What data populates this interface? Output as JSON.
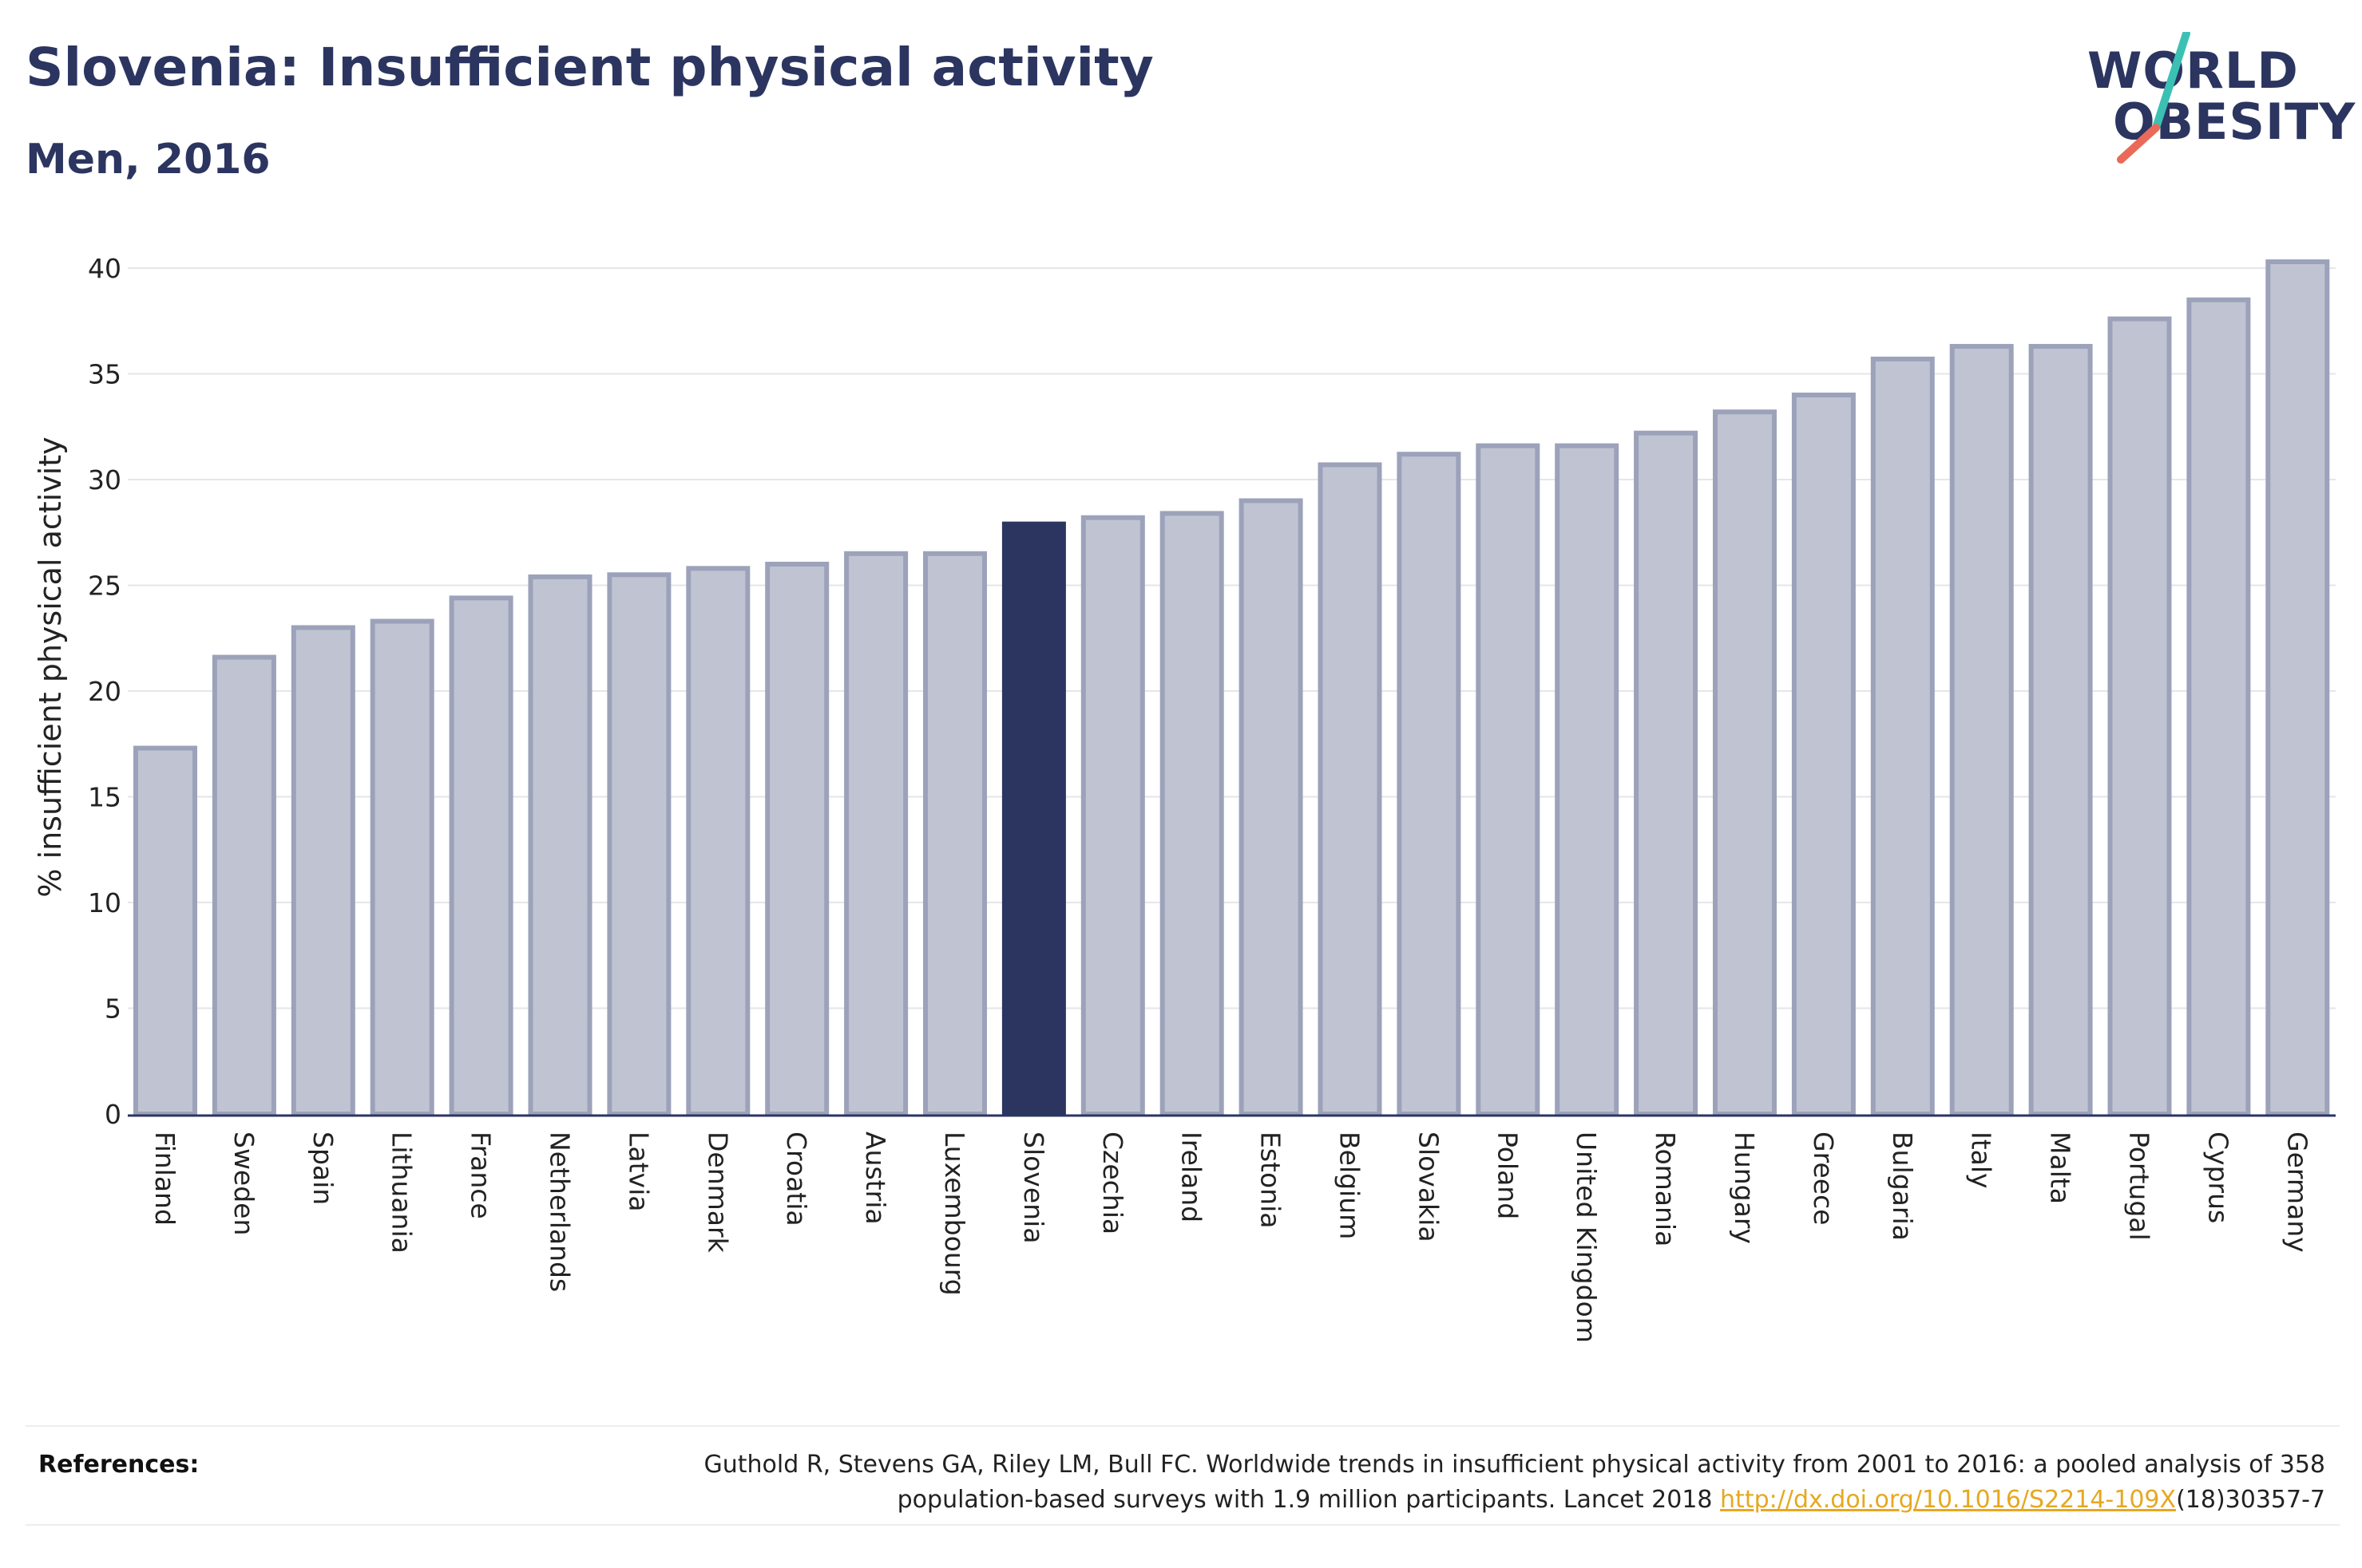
{
  "header": {
    "title": "Slovenia: Insufficient physical activity",
    "subtitle": "Men, 2016"
  },
  "logo": {
    "line1": "WORLD",
    "line2": "OBESITY",
    "slash_color_top": "#3cc0b4",
    "slash_color_bottom": "#ea6a5a"
  },
  "chart_data": {
    "type": "bar",
    "title": "Slovenia: Insufficient physical activity",
    "subtitle": "Men, 2016",
    "ylabel": "% insufficient physical activity",
    "xlabel": "",
    "ylim": [
      0,
      41
    ],
    "yticks": [
      "0",
      "5",
      "10",
      "15",
      "20",
      "25",
      "30",
      "35",
      "40"
    ],
    "grid": "horizontal",
    "highlight": "Slovenia",
    "colors": {
      "bar": "#c0c4d2",
      "bar_edge": "#9ca2ba",
      "highlight": "#2b3560"
    },
    "categories": [
      "Finland",
      "Sweden",
      "Spain",
      "Lithuania",
      "France",
      "Netherlands",
      "Latvia",
      "Denmark",
      "Croatia",
      "Austria",
      "Luxembourg",
      "Slovenia",
      "Czechia",
      "Ireland",
      "Estonia",
      "Belgium",
      "Slovakia",
      "Poland",
      "United Kingdom",
      "Romania",
      "Hungary",
      "Greece",
      "Bulgaria",
      "Italy",
      "Malta",
      "Portugal",
      "Cyprus",
      "Germany"
    ],
    "values": [
      17.3,
      21.6,
      23.0,
      23.3,
      24.4,
      25.4,
      25.5,
      25.8,
      26.0,
      26.5,
      26.5,
      27.9,
      28.2,
      28.4,
      29.0,
      30.7,
      31.2,
      31.6,
      31.6,
      32.2,
      33.2,
      34.0,
      35.7,
      36.3,
      36.3,
      37.6,
      38.5,
      40.3
    ]
  },
  "references": {
    "label": "References:",
    "text_line1": "Guthold R, Stevens GA, Riley LM, Bull FC. Worldwide trends in insufficient physical activity from 2001 to 2016: a pooled analysis of 358",
    "text_line2_prefix": "population-based surveys with 1.9 million participants. Lancet 2018 ",
    "link": "http://dx.doi.org/10.1016/S2214-109X",
    "text_line2_suffix": "(18)30357-7"
  }
}
